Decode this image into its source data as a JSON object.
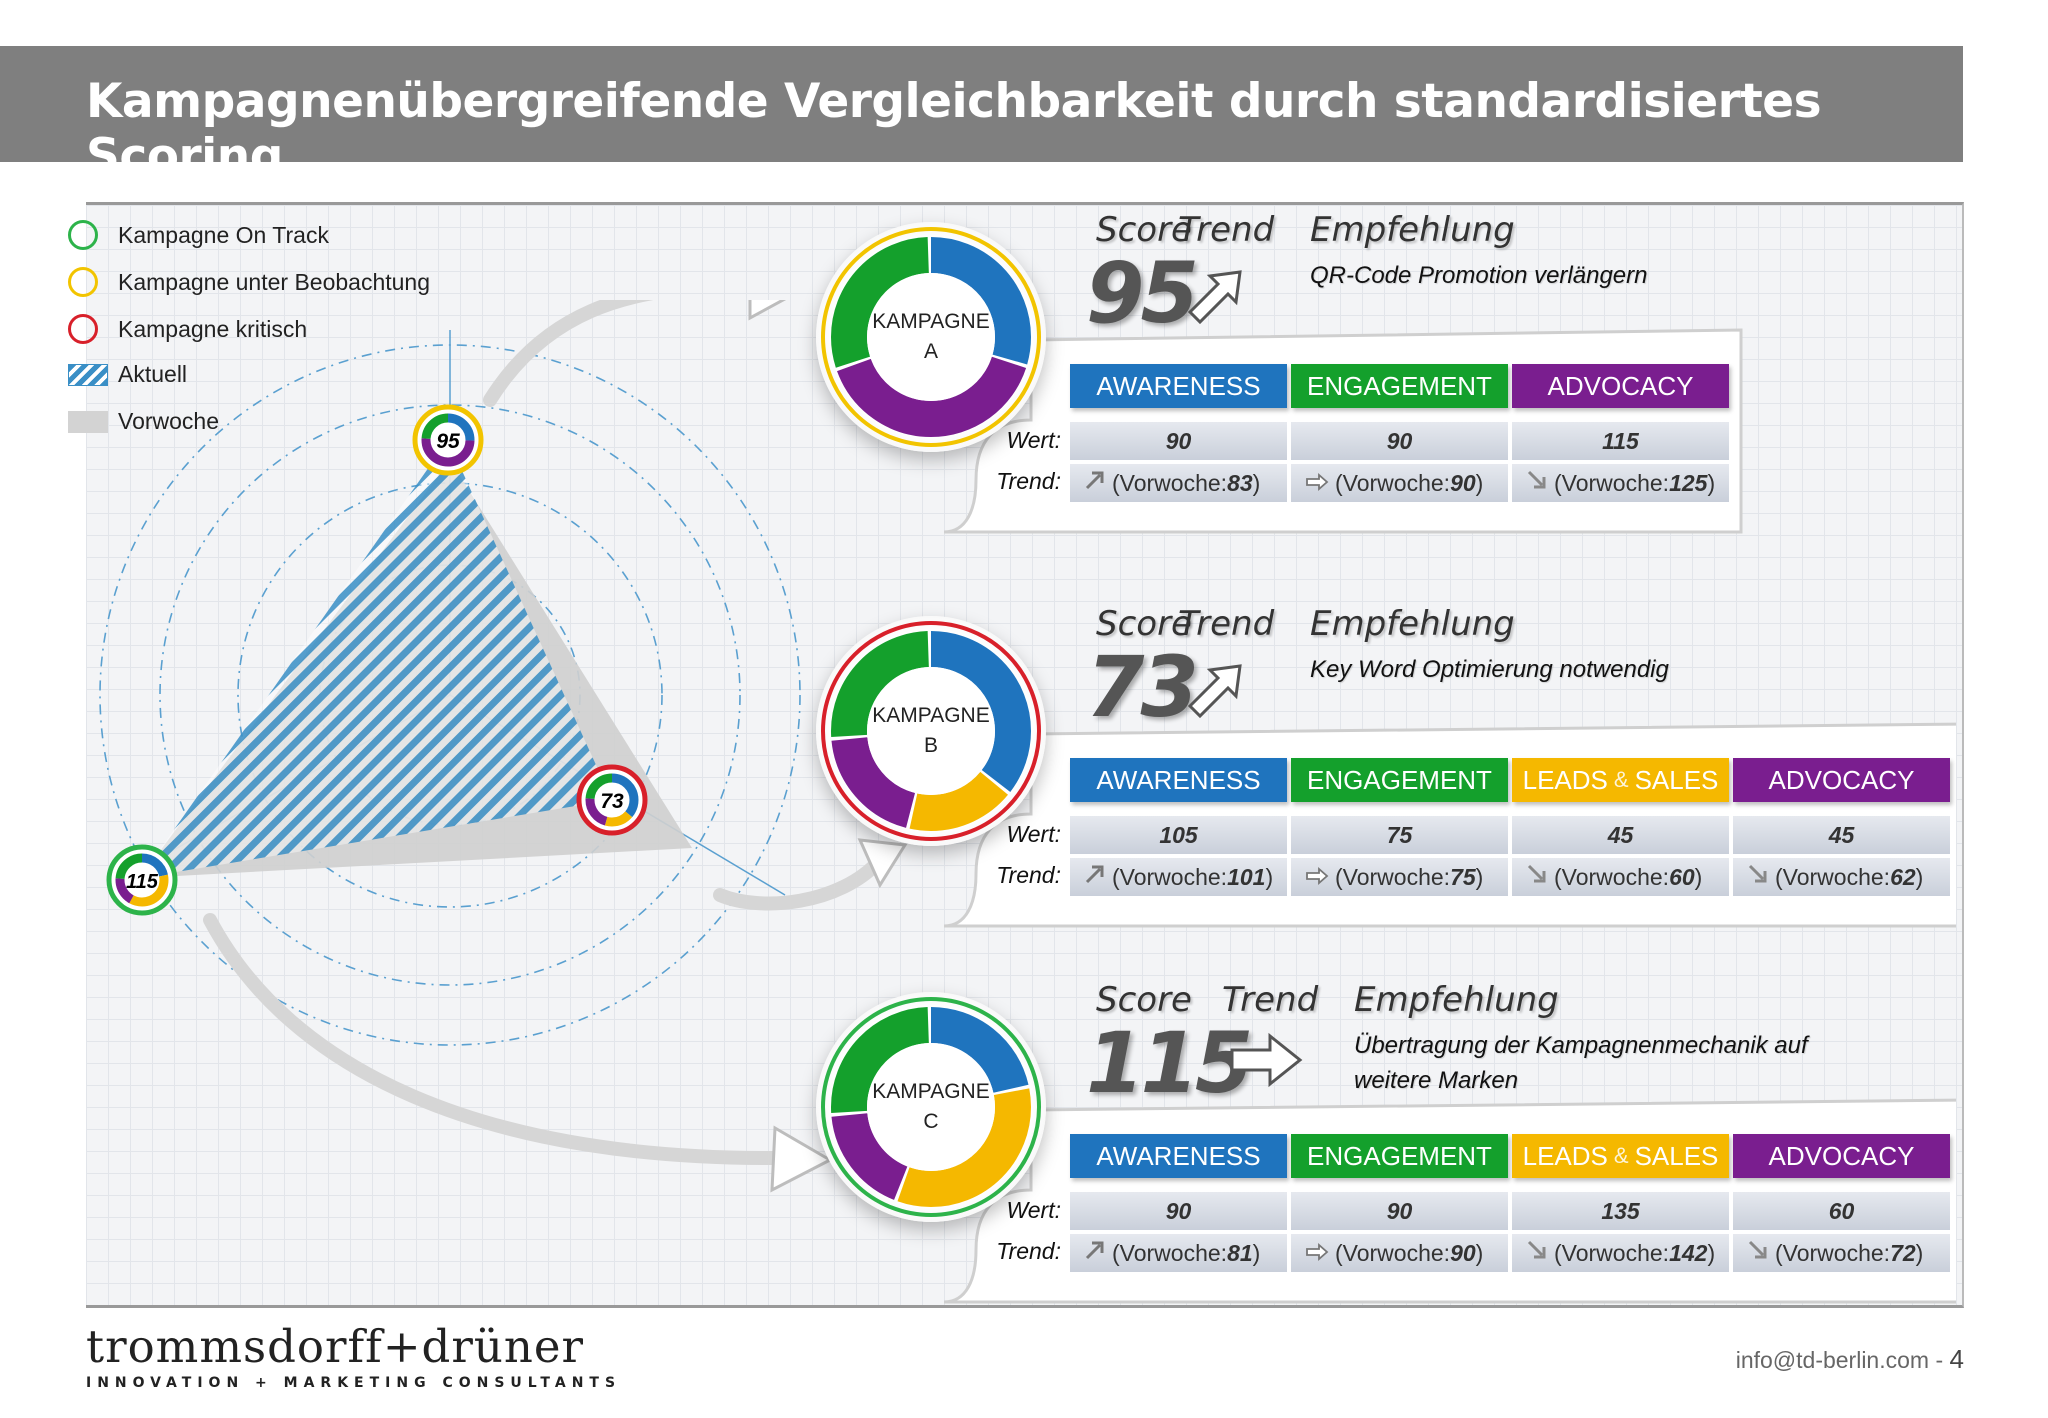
{
  "title": "Kampagnenübergreifende Vergleichbarkeit durch standardisiertes Scoring",
  "colors": {
    "awareness": "#1f74be",
    "engagement": "#14a02c",
    "leads_sales": "#f5b800",
    "advocacy": "#7a1e8f",
    "on_track": "#2db34a",
    "watch": "#f2c400",
    "critical": "#d8202a",
    "hatch": "#3a8fc6"
  },
  "legend": [
    {
      "label": "Kampagne On Track",
      "icon": "circle-green"
    },
    {
      "label": "Kampagne unter Beobachtung",
      "icon": "circle-yellow"
    },
    {
      "label": "Kampagne kritisch",
      "icon": "circle-red"
    },
    {
      "label": "Aktuell",
      "icon": "hatched-blue"
    },
    {
      "label": "Vorwoche",
      "icon": "grey-fill"
    }
  ],
  "radar": {
    "points": [
      {
        "label": "95"
      },
      {
        "label": "73"
      },
      {
        "label": "115"
      }
    ]
  },
  "headers": {
    "score": "Score",
    "trend": "Trend",
    "recommendation": "Empfehlung",
    "wert": "Wert:",
    "trend_row": "Trend:"
  },
  "campaigns": [
    {
      "name_line1": "KAMPAGNE",
      "name_line2": "A",
      "score": "95",
      "trend_icon": "arrow-up-right-icon",
      "status": "watch",
      "recommendation_line1": "QR-Code Promotion verlängern",
      "recommendation_line2": "",
      "categories": [
        {
          "label": "AWARENESS",
          "key": "aw",
          "value": "90",
          "trend_icon": "arrow-up-right-icon",
          "prev_prefix": "(Vorwoche:",
          "prev": "83",
          "prev_suffix": ")"
        },
        {
          "label": "ENGAGEMENT",
          "key": "en",
          "value": "90",
          "trend_icon": "arrow-right-icon",
          "prev_prefix": "(Vorwoche:",
          "prev": "90",
          "prev_suffix": ")"
        },
        {
          "label": "ADVOCACY",
          "key": "ad",
          "value": "115",
          "trend_icon": "arrow-down-right-icon",
          "prev_prefix": "(Vorwoche:",
          "prev": "125",
          "prev_suffix": ")"
        }
      ]
    },
    {
      "name_line1": "KAMPAGNE",
      "name_line2": "B",
      "score": "73",
      "trend_icon": "arrow-up-right-icon",
      "status": "critical",
      "recommendation_line1": "Key Word Optimierung notwendig",
      "recommendation_line2": "",
      "categories": [
        {
          "label": "AWARENESS",
          "key": "aw",
          "value": "105",
          "trend_icon": "arrow-up-right-icon",
          "prev_prefix": "(Vorwoche:",
          "prev": "101",
          "prev_suffix": ")"
        },
        {
          "label": "ENGAGEMENT",
          "key": "en",
          "value": "75",
          "trend_icon": "arrow-right-icon",
          "prev_prefix": "(Vorwoche:",
          "prev": "75",
          "prev_suffix": ")"
        },
        {
          "label": "LEADS",
          "label2": "SALES",
          "amp": "&",
          "key": "ls",
          "value": "45",
          "trend_icon": "arrow-down-right-icon",
          "prev_prefix": "(Vorwoche:",
          "prev": "60",
          "prev_suffix": ")"
        },
        {
          "label": "ADVOCACY",
          "key": "ad",
          "value": "45",
          "trend_icon": "arrow-down-right-icon",
          "prev_prefix": "(Vorwoche:",
          "prev": "62",
          "prev_suffix": ")"
        }
      ]
    },
    {
      "name_line1": "KAMPAGNE",
      "name_line2": "C",
      "score": "115",
      "trend_icon": "arrow-right-icon",
      "status": "on_track",
      "recommendation_line1": "Übertragung der Kampagnenmechanik auf",
      "recommendation_line2": "weitere Marken",
      "categories": [
        {
          "label": "AWARENESS",
          "key": "aw",
          "value": "90",
          "trend_icon": "arrow-up-right-icon",
          "prev_prefix": "(Vorwoche:",
          "prev": "81",
          "prev_suffix": ")"
        },
        {
          "label": "ENGAGEMENT",
          "key": "en",
          "value": "90",
          "trend_icon": "arrow-right-icon",
          "prev_prefix": "(Vorwoche:",
          "prev": "90",
          "prev_suffix": ")"
        },
        {
          "label": "LEADS",
          "label2": "SALES",
          "amp": "&",
          "key": "ls",
          "value": "135",
          "trend_icon": "arrow-down-right-icon",
          "prev_prefix": "(Vorwoche:",
          "prev": "142",
          "prev_suffix": ")"
        },
        {
          "label": "ADVOCACY",
          "key": "ad",
          "value": "60",
          "trend_icon": "arrow-down-right-icon",
          "prev_prefix": "(Vorwoche:",
          "prev": "72",
          "prev_suffix": ")"
        }
      ]
    }
  ],
  "logo": {
    "name": "trommsdorff+drüner",
    "tagline": "INNOVATION + MARKETING CONSULTANTS"
  },
  "footer": {
    "email": "info@td-berlin.com",
    "separator": " - ",
    "page": "4"
  }
}
